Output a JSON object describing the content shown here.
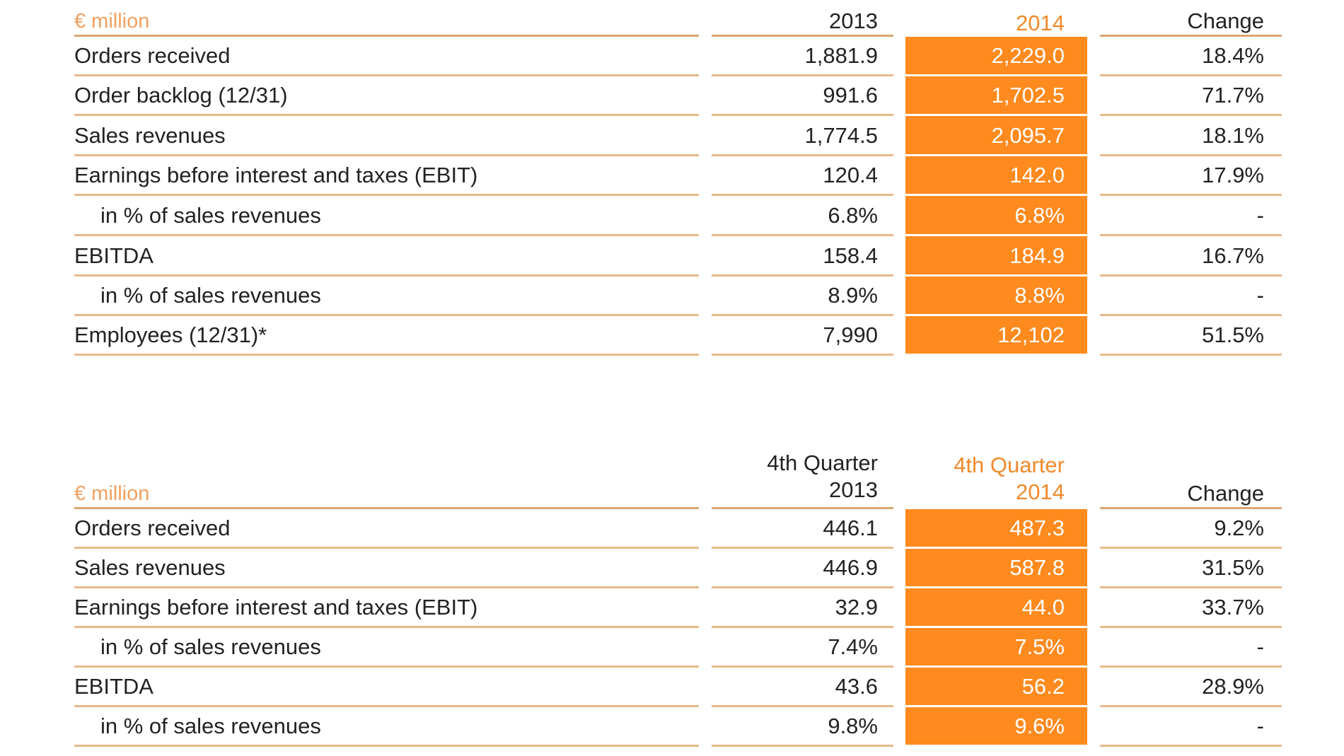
{
  "annual_table": {
    "header": {
      "unit": "€ million",
      "col_prev": "2013",
      "col_curr": "2014",
      "col_change": "Change"
    },
    "rows": [
      {
        "label": "Orders received",
        "prev": "1,881.9",
        "curr": "2,229.0",
        "change": "18.4%",
        "indent": false
      },
      {
        "label": "Order backlog (12/31)",
        "prev": "991.6",
        "curr": "1,702.5",
        "change": "71.7%",
        "indent": false
      },
      {
        "label": "Sales revenues",
        "prev": "1,774.5",
        "curr": "2,095.7",
        "change": "18.1%",
        "indent": false
      },
      {
        "label": "Earnings before interest and taxes (EBIT)",
        "prev": "120.4",
        "curr": "142.0",
        "change": "17.9%",
        "indent": false
      },
      {
        "label": "in % of sales revenues",
        "prev": "6.8%",
        "curr": "6.8%",
        "change": "-",
        "indent": true
      },
      {
        "label": "EBITDA",
        "prev": "158.4",
        "curr": "184.9",
        "change": "16.7%",
        "indent": false
      },
      {
        "label": "in % of sales revenues",
        "prev": "8.9%",
        "curr": "8.8%",
        "change": "-",
        "indent": true
      },
      {
        "label": "Employees (12/31)*",
        "prev": "7,990",
        "curr": "12,102",
        "change": "51.5%",
        "indent": false
      }
    ]
  },
  "quarter_table": {
    "header": {
      "unit": "€ million",
      "col_prev_line1": "4th Quarter",
      "col_prev_line2": "2013",
      "col_curr_line1": "4th Quarter",
      "col_curr_line2": "2014",
      "col_change": "Change"
    },
    "rows": [
      {
        "label": "Orders received",
        "prev": "446.1",
        "curr": "487.3",
        "change": "9.2%",
        "indent": false
      },
      {
        "label": "Sales revenues",
        "prev": "446.9",
        "curr": "587.8",
        "change": "31.5%",
        "indent": false
      },
      {
        "label": "Earnings before interest and taxes (EBIT)",
        "prev": "32.9",
        "curr": "44.0",
        "change": "33.7%",
        "indent": false
      },
      {
        "label": "in % of sales revenues",
        "prev": "7.4%",
        "curr": "7.5%",
        "change": "-",
        "indent": true
      },
      {
        "label": "EBITDA",
        "prev": "43.6",
        "curr": "56.2",
        "change": "28.9%",
        "indent": false
      },
      {
        "label": "in % of sales revenues",
        "prev": "9.8%",
        "curr": "9.6%",
        "change": "-",
        "indent": true
      }
    ]
  },
  "colors": {
    "highlight": "#ff8a1e",
    "rule": "#e8b98a",
    "header_accent": "#f08a2a"
  }
}
